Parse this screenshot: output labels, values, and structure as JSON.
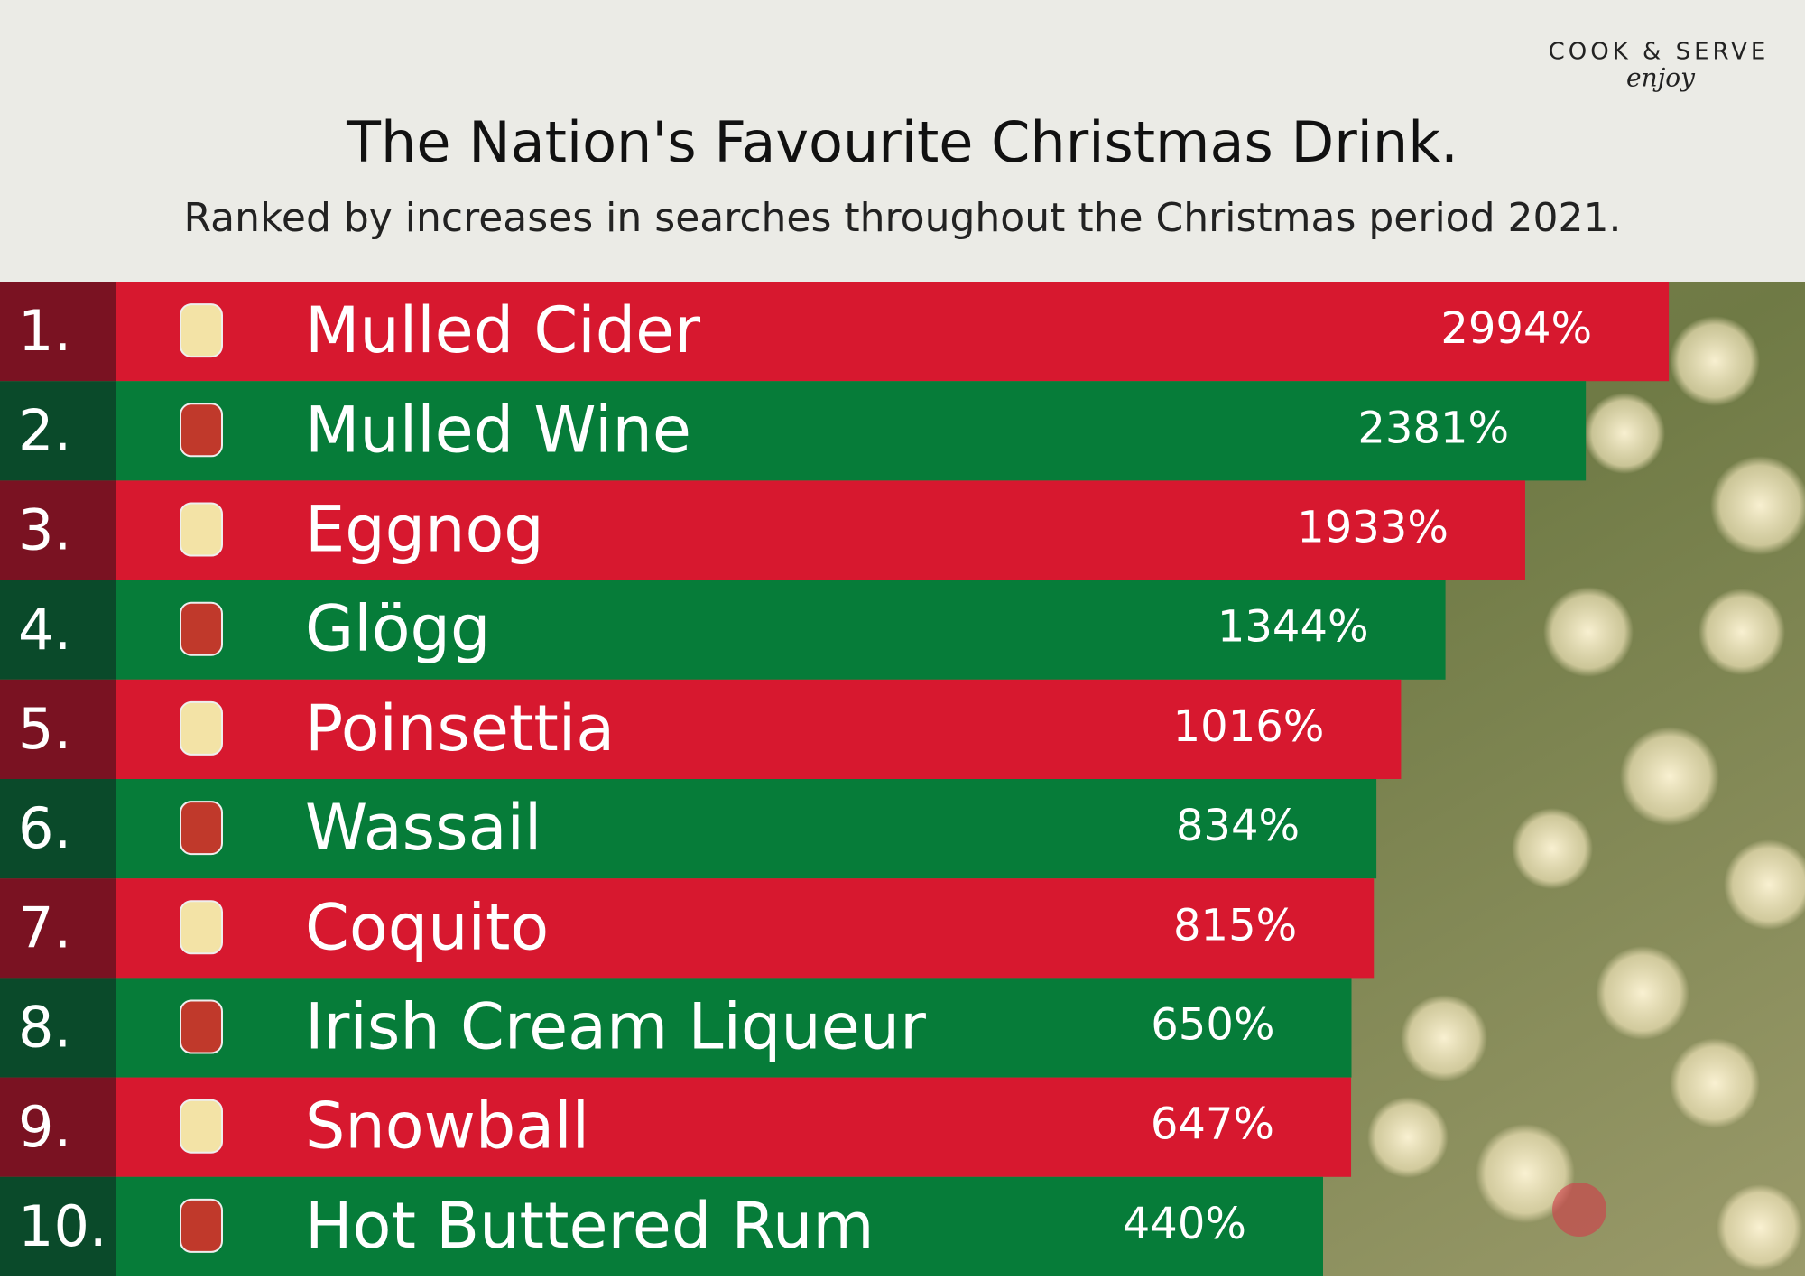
{
  "brand": {
    "name": "COOK & SERVE",
    "tagline": "enjoy"
  },
  "chart_data": {
    "type": "bar",
    "orientation": "horizontal",
    "title": "The Nation's Favourite Christmas Drink.",
    "subtitle": "Ranked by increases in searches throughout the Christmas period 2021.",
    "ranks": [
      "1.",
      "2.",
      "3.",
      "4.",
      "5.",
      "6.",
      "7.",
      "8.",
      "9.",
      "10."
    ],
    "categories": [
      "Mulled Cider",
      "Mulled Wine",
      "Eggnog",
      "Glögg",
      "Poinsettia",
      "Wassail",
      "Coquito",
      "Irish Cream Liqueur",
      "Snowball",
      "Hot Buttered Rum"
    ],
    "values": [
      2994,
      2381,
      1933,
      1344,
      1016,
      834,
      815,
      650,
      647,
      440
    ],
    "value_labels": [
      "2994%",
      "2381%",
      "1933%",
      "1344%",
      "1016%",
      "834%",
      "815%",
      "650%",
      "647%",
      "440%"
    ],
    "colors": [
      "#d7182f",
      "#067c39"
    ],
    "rank_colors": [
      "#7a1222",
      "#0a4a2a"
    ]
  }
}
